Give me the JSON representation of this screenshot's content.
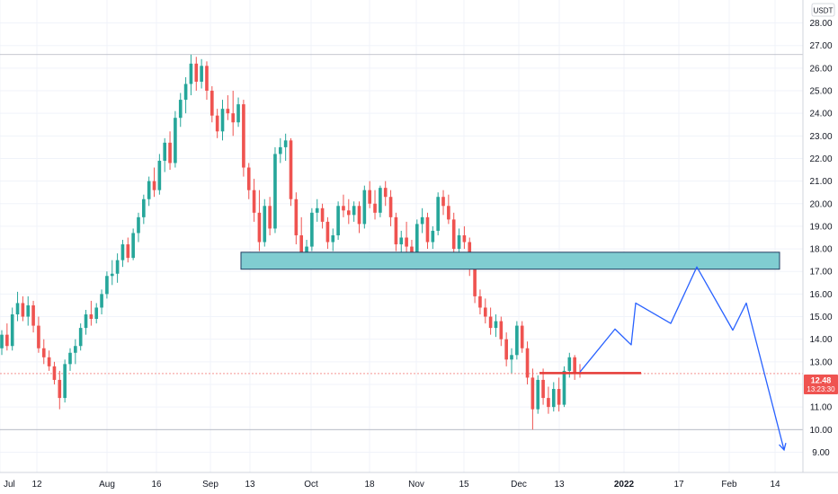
{
  "chart_data": {
    "type": "candlestick",
    "quote_currency": "USDT",
    "x_ticks": [
      "Jul",
      "12",
      "Aug",
      "16",
      "Sep",
      "13",
      "Oct",
      "18",
      "Nov",
      "15",
      "Dec",
      "13",
      "2022",
      "17",
      "Feb",
      "14"
    ],
    "y_ticks": [
      "9.00",
      "10.00",
      "11.00",
      "12.00",
      "13.00",
      "14.00",
      "15.00",
      "16.00",
      "17.00",
      "18.00",
      "19.00",
      "20.00",
      "21.00",
      "22.00",
      "23.00",
      "24.00",
      "25.00",
      "26.00",
      "27.00",
      "28.00"
    ],
    "ylim": [
      8.6,
      28.4
    ],
    "grid": true,
    "colors": {
      "up": "#26a69a",
      "down": "#ef5350",
      "box_fill": "#80cdd1",
      "box_edge": "#1e3a5f",
      "projection": "#2962ff",
      "level_line": "#e53935",
      "price_tag": "#ef5350"
    },
    "last_price": {
      "value": "12.48",
      "countdown": "13:23:30"
    },
    "horizontal_lines": [
      26.6,
      10.0
    ],
    "support_zone": {
      "x_start": "Sep 15",
      "x_end": "Feb 26",
      "y_low": 17.1,
      "y_high": 17.85
    },
    "red_level": {
      "x_start": "Dec 5",
      "x_end": "Dec 30",
      "y": 12.5
    },
    "projection_path": {
      "x": [
        "Dec 17",
        "Dec 27",
        "Jan 1",
        "Jan 5",
        "Jan 15",
        "Jan 22",
        "Jan 31",
        "Feb 4",
        "Feb 15"
      ],
      "y": [
        12.55,
        14.45,
        13.75,
        15.6,
        14.7,
        17.2,
        14.4,
        15.6,
        9.1
      ],
      "arrow_end": true
    },
    "ohlc_daily": [
      [
        13.6,
        14.4,
        13.3,
        14.2
      ],
      [
        14.2,
        14.7,
        13.5,
        13.7
      ],
      [
        13.7,
        15.4,
        13.5,
        15.1
      ],
      [
        15.1,
        16.1,
        14.8,
        15.6
      ],
      [
        15.6,
        15.9,
        14.8,
        15.0
      ],
      [
        15.0,
        15.9,
        14.6,
        15.5
      ],
      [
        15.5,
        15.7,
        14.3,
        14.6
      ],
      [
        14.6,
        15.0,
        13.4,
        13.6
      ],
      [
        13.6,
        14.0,
        12.9,
        13.2
      ],
      [
        13.2,
        13.5,
        12.6,
        12.8
      ],
      [
        12.8,
        13.0,
        12.0,
        12.2
      ],
      [
        12.2,
        12.6,
        10.9,
        11.4
      ],
      [
        11.4,
        13.1,
        11.2,
        12.9
      ],
      [
        12.9,
        13.6,
        12.6,
        13.4
      ],
      [
        13.4,
        14.0,
        12.9,
        13.7
      ],
      [
        13.7,
        14.7,
        13.5,
        14.5
      ],
      [
        14.5,
        15.3,
        14.2,
        15.1
      ],
      [
        15.1,
        15.7,
        14.6,
        14.9
      ],
      [
        14.9,
        15.6,
        14.7,
        15.4
      ],
      [
        15.4,
        16.2,
        15.1,
        16.0
      ],
      [
        16.0,
        17.0,
        15.8,
        16.8
      ],
      [
        16.8,
        17.5,
        16.4,
        16.9
      ],
      [
        16.9,
        17.8,
        16.5,
        17.5
      ],
      [
        17.5,
        18.4,
        17.2,
        18.2
      ],
      [
        18.2,
        18.5,
        17.4,
        17.6
      ],
      [
        17.6,
        18.9,
        17.5,
        18.7
      ],
      [
        18.7,
        19.6,
        18.3,
        19.4
      ],
      [
        19.4,
        20.4,
        19.1,
        20.2
      ],
      [
        20.2,
        21.2,
        19.9,
        21.0
      ],
      [
        21.0,
        21.6,
        20.3,
        20.6
      ],
      [
        20.6,
        22.2,
        20.4,
        21.9
      ],
      [
        21.9,
        22.9,
        21.4,
        22.7
      ],
      [
        22.7,
        23.2,
        21.5,
        21.8
      ],
      [
        21.8,
        24.1,
        21.6,
        23.8
      ],
      [
        23.8,
        24.9,
        23.4,
        24.6
      ],
      [
        24.6,
        25.6,
        24.0,
        25.3
      ],
      [
        25.3,
        26.6,
        24.8,
        26.2
      ],
      [
        26.2,
        26.5,
        25.0,
        25.4
      ],
      [
        25.4,
        26.4,
        25.1,
        26.1
      ],
      [
        26.1,
        26.3,
        24.6,
        25.0
      ],
      [
        25.0,
        25.2,
        23.6,
        23.9
      ],
      [
        23.9,
        24.2,
        22.9,
        23.2
      ],
      [
        23.2,
        24.6,
        22.8,
        24.2
      ],
      [
        24.2,
        24.8,
        23.7,
        24.0
      ],
      [
        24.0,
        25.0,
        23.0,
        23.6
      ],
      [
        23.6,
        24.7,
        23.4,
        24.4
      ],
      [
        24.4,
        24.6,
        21.2,
        21.6
      ],
      [
        21.6,
        21.8,
        20.2,
        20.6
      ],
      [
        20.6,
        21.1,
        19.2,
        19.6
      ],
      [
        19.6,
        20.6,
        17.9,
        18.3
      ],
      [
        18.3,
        20.2,
        18.1,
        19.9
      ],
      [
        19.9,
        20.3,
        18.6,
        18.9
      ],
      [
        18.9,
        22.5,
        18.7,
        22.2
      ],
      [
        22.2,
        22.9,
        21.8,
        22.5
      ],
      [
        22.5,
        23.1,
        21.9,
        22.8
      ],
      [
        22.8,
        22.9,
        19.9,
        20.2
      ],
      [
        20.2,
        20.5,
        18.2,
        18.6
      ],
      [
        18.6,
        19.4,
        17.4,
        17.8
      ],
      [
        17.8,
        18.4,
        17.5,
        18.1
      ],
      [
        18.1,
        19.8,
        17.9,
        19.6
      ],
      [
        19.6,
        20.2,
        19.2,
        19.8
      ],
      [
        19.8,
        20.0,
        18.9,
        19.2
      ],
      [
        19.2,
        19.4,
        18.0,
        18.3
      ],
      [
        18.3,
        18.9,
        17.9,
        18.6
      ],
      [
        18.6,
        20.1,
        18.4,
        19.9
      ],
      [
        19.9,
        20.4,
        19.4,
        19.7
      ],
      [
        19.7,
        20.2,
        19.1,
        19.5
      ],
      [
        19.5,
        20.1,
        19.2,
        19.9
      ],
      [
        19.9,
        20.1,
        18.7,
        19.1
      ],
      [
        19.1,
        20.8,
        18.9,
        20.6
      ],
      [
        20.6,
        21.0,
        19.8,
        20.0
      ],
      [
        20.0,
        20.6,
        19.3,
        19.6
      ],
      [
        19.6,
        20.8,
        19.4,
        20.7
      ],
      [
        20.7,
        21.0,
        19.9,
        20.3
      ],
      [
        20.3,
        20.6,
        19.0,
        19.4
      ],
      [
        19.4,
        19.6,
        17.9,
        18.2
      ],
      [
        18.2,
        18.8,
        17.6,
        18.5
      ],
      [
        18.5,
        19.2,
        17.8,
        18.1
      ],
      [
        18.1,
        18.4,
        17.3,
        17.6
      ],
      [
        17.6,
        19.3,
        17.4,
        19.1
      ],
      [
        19.1,
        19.8,
        18.7,
        19.4
      ],
      [
        19.4,
        19.6,
        18.0,
        18.3
      ],
      [
        18.3,
        19.0,
        18.0,
        18.8
      ],
      [
        18.8,
        20.5,
        18.6,
        20.3
      ],
      [
        20.3,
        20.6,
        19.5,
        19.9
      ],
      [
        19.9,
        20.4,
        19.1,
        19.3
      ],
      [
        19.3,
        19.6,
        17.7,
        18.0
      ],
      [
        18.0,
        18.9,
        17.6,
        18.6
      ],
      [
        18.6,
        19.0,
        18.0,
        18.3
      ],
      [
        18.3,
        18.5,
        16.8,
        17.1
      ],
      [
        17.1,
        17.3,
        15.6,
        15.9
      ],
      [
        15.9,
        16.2,
        15.1,
        15.4
      ],
      [
        15.4,
        15.8,
        14.7,
        15.0
      ],
      [
        15.0,
        15.4,
        14.2,
        14.5
      ],
      [
        14.5,
        15.1,
        14.1,
        14.8
      ],
      [
        14.8,
        15.0,
        13.7,
        14.0
      ],
      [
        14.0,
        14.3,
        12.8,
        13.1
      ],
      [
        13.1,
        13.6,
        12.5,
        13.3
      ],
      [
        13.3,
        14.8,
        13.1,
        14.6
      ],
      [
        14.6,
        14.8,
        13.4,
        13.6
      ],
      [
        13.6,
        13.9,
        12.0,
        12.3
      ],
      [
        12.3,
        12.7,
        10.0,
        10.9
      ],
      [
        10.9,
        12.4,
        10.7,
        12.2
      ],
      [
        12.2,
        12.7,
        11.1,
        11.4
      ],
      [
        11.4,
        11.9,
        10.7,
        11.0
      ],
      [
        11.0,
        12.1,
        10.8,
        11.8
      ],
      [
        11.8,
        12.3,
        10.8,
        11.1
      ],
      [
        11.1,
        12.8,
        11.0,
        12.6
      ],
      [
        12.6,
        13.4,
        12.3,
        13.2
      ],
      [
        13.2,
        13.3,
        12.2,
        12.5
      ],
      [
        12.5,
        12.9,
        12.3,
        12.48
      ]
    ]
  }
}
